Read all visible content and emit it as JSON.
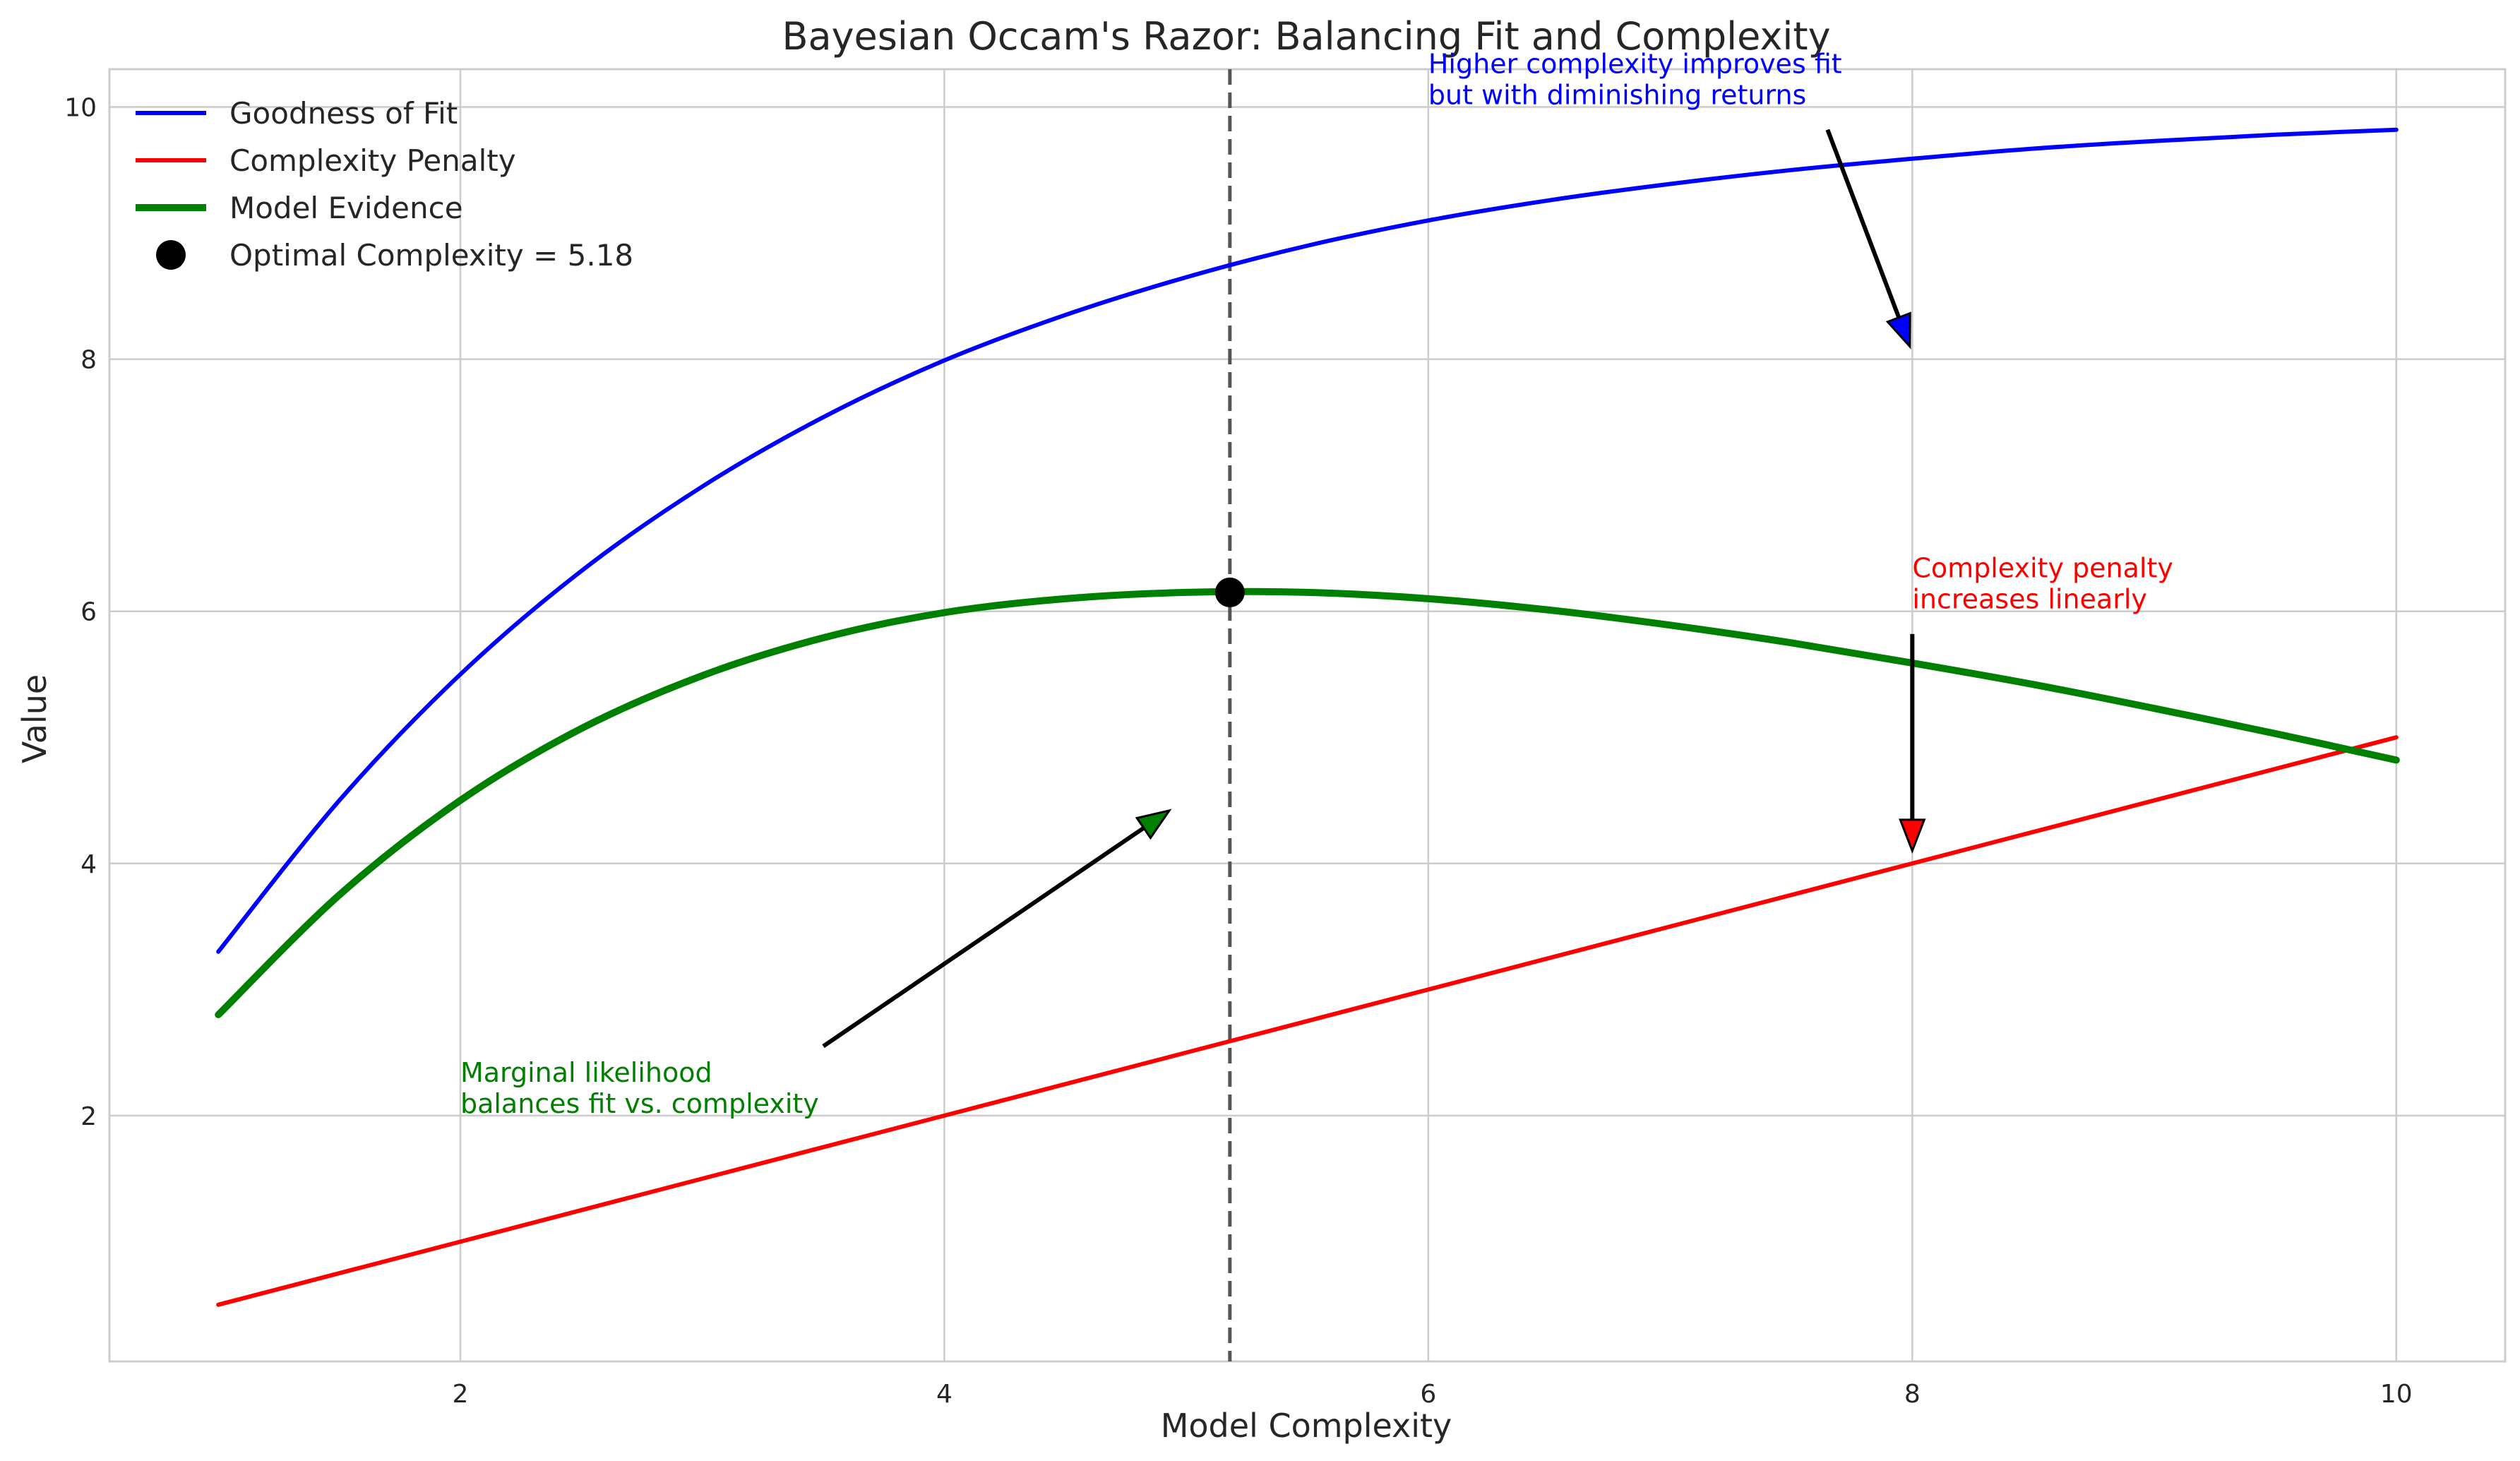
{
  "chart_data": {
    "type": "line",
    "title": "Bayesian Occam's Razor: Balancing Fit and Complexity",
    "xlabel": "Model Complexity",
    "ylabel": "Value",
    "xlim": [
      0.55,
      10.45
    ],
    "ylim": [
      0.05,
      10.3
    ],
    "x_ticks": [
      2,
      4,
      6,
      8,
      10
    ],
    "y_ticks": [
      2,
      4,
      6,
      8,
      10
    ],
    "grid": true,
    "legend_position": "top-left",
    "series": [
      {
        "name": "Goodness of Fit",
        "color": "#0000ff",
        "x": [
          1.0,
          1.5,
          2.0,
          2.5,
          3.0,
          3.5,
          4.0,
          4.5,
          5.0,
          5.5,
          6.0,
          6.5,
          7.0,
          7.5,
          8.0,
          8.5,
          9.0,
          9.5,
          10.0
        ],
        "values": [
          3.3,
          4.5,
          5.5,
          6.32,
          6.99,
          7.54,
          7.99,
          8.35,
          8.65,
          8.9,
          9.1,
          9.26,
          9.39,
          9.5,
          9.59,
          9.67,
          9.73,
          9.78,
          9.82
        ]
      },
      {
        "name": "Complexity Penalty",
        "color": "#ff0000",
        "x": [
          1.0,
          10.0
        ],
        "values": [
          0.5,
          5.0
        ]
      },
      {
        "name": "Model Evidence",
        "color": "#008000",
        "x": [
          1.0,
          1.5,
          2.0,
          2.5,
          3.0,
          3.5,
          4.0,
          4.5,
          5.0,
          5.5,
          6.0,
          6.5,
          7.0,
          7.5,
          8.0,
          8.5,
          9.0,
          9.5,
          10.0
        ],
        "values": [
          2.8,
          3.75,
          4.5,
          5.07,
          5.49,
          5.79,
          5.99,
          6.1,
          6.15,
          6.15,
          6.1,
          6.01,
          5.89,
          5.75,
          5.59,
          5.42,
          5.23,
          5.03,
          4.82
        ]
      },
      {
        "name": "Optimal Complexity = 5.18",
        "type": "scatter",
        "color": "#000000",
        "x": [
          5.18
        ],
        "values": [
          6.15
        ]
      }
    ],
    "vline": {
      "x": 5.18,
      "color": "#555555",
      "style": "dashed"
    },
    "annotations": [
      {
        "text_lines": [
          "Higher complexity improves fit",
          "but with diminishing returns"
        ],
        "color": "#0000ff",
        "text_x": 6.0,
        "text_y": 10.0,
        "arrow_from": [
          7.65,
          9.82
        ],
        "arrow_to": [
          7.99,
          8.1
        ],
        "arrow_face": "#0000ff"
      },
      {
        "text_lines": [
          "Complexity penalty",
          "increases linearly"
        ],
        "color": "#ff0000",
        "text_x": 8.0,
        "text_y": 6.0,
        "arrow_from": [
          8.0,
          5.82
        ],
        "arrow_to": [
          8.0,
          4.1
        ],
        "arrow_face": "#ff0000"
      },
      {
        "text_lines": [
          "Marginal likelihood",
          "balances fit vs. complexity"
        ],
        "color": "#008000",
        "text_x": 2.0,
        "text_y": 2.0,
        "arrow_from": [
          3.5,
          2.55
        ],
        "arrow_to": [
          4.93,
          4.42
        ],
        "arrow_face": "#008000"
      }
    ]
  }
}
